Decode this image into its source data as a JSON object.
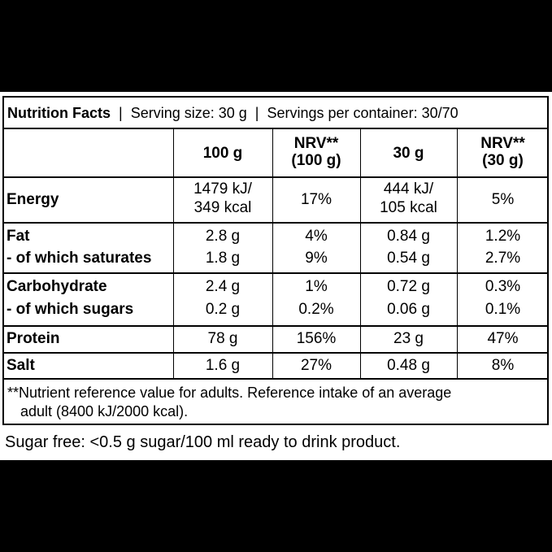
{
  "header": {
    "title": "Nutrition Facts",
    "serving": "Serving size: 30 g",
    "servings_per_container": "Servings per container: 30/70"
  },
  "columns": [
    "100 g",
    "NRV**",
    "(100 g)",
    "30 g",
    "NRV**",
    "(30 g)"
  ],
  "rows": {
    "energy": {
      "label": "Energy",
      "c1a": "1479 kJ/",
      "c1b": "349 kcal",
      "c2": "17%",
      "c3a": "444 kJ/",
      "c3b": "105 kcal",
      "c4": "5%"
    },
    "fat": {
      "label": "Fat",
      "c1": "2.8 g",
      "c2": "4%",
      "c3": "0.84 g",
      "c4": "1.2%"
    },
    "saturates": {
      "label": "- of which saturates",
      "c1": "1.8 g",
      "c2": "9%",
      "c3": "0.54 g",
      "c4": "2.7%"
    },
    "carbohydrate": {
      "label": "Carbohydrate",
      "c1": "2.4 g",
      "c2": "1%",
      "c3": "0.72 g",
      "c4": "0.3%"
    },
    "sugars": {
      "label": "- of which sugars",
      "c1": "0.2 g",
      "c2": "0.2%",
      "c3": "0.06 g",
      "c4": "0.1%"
    },
    "protein": {
      "label": "Protein",
      "c1": "78 g",
      "c2": "156%",
      "c3": "23 g",
      "c4": "47%"
    },
    "salt": {
      "label": "Salt",
      "c1": "1.6 g",
      "c2": "27%",
      "c3": "0.48 g",
      "c4": "8%"
    }
  },
  "footnote_line1": "**Nutrient reference value for adults. Reference intake of an average",
  "footnote_line2": "adult (8400 kJ/2000 kcal).",
  "sugar_note": "Sugar free: <0.5 g sugar/100 ml ready to drink product."
}
